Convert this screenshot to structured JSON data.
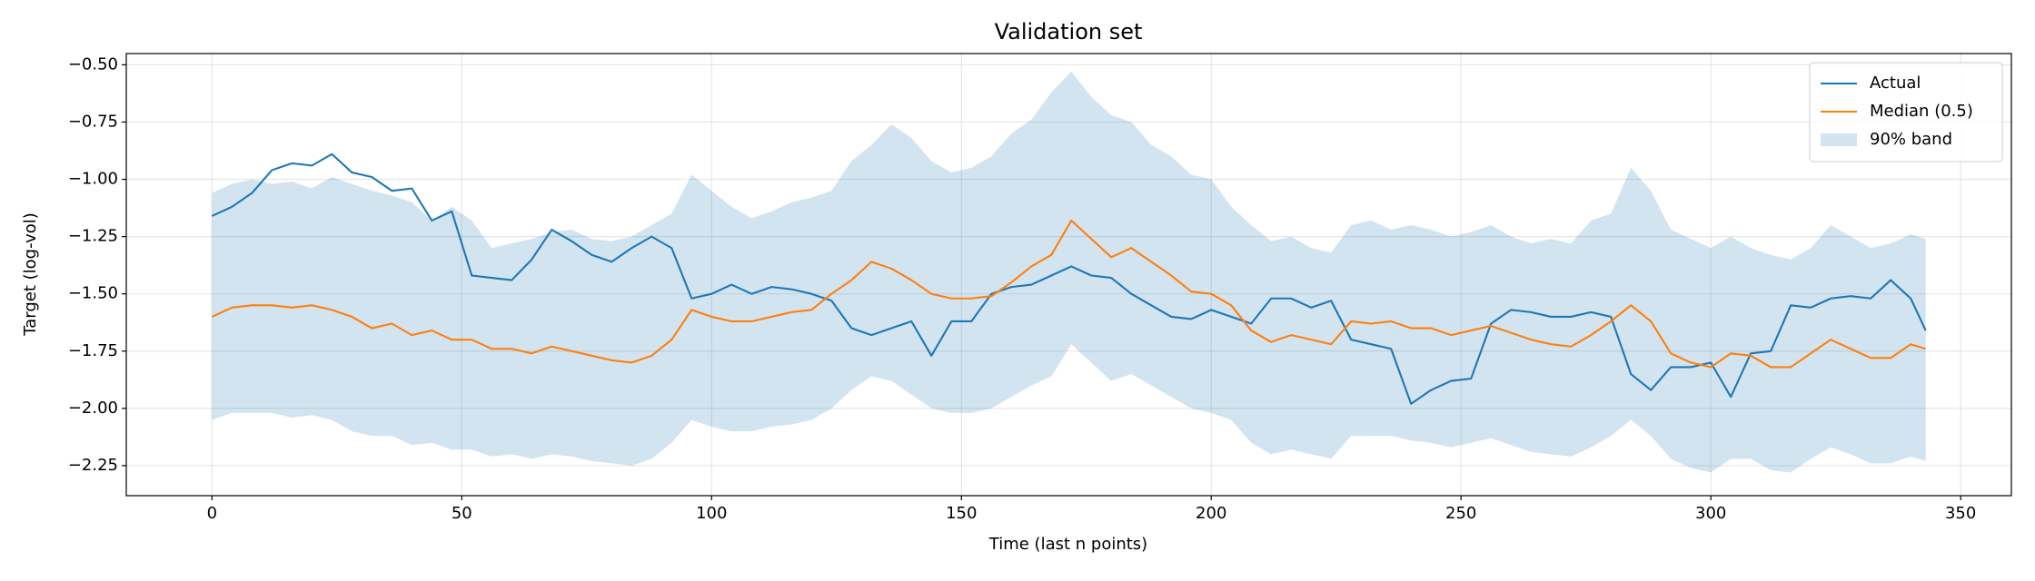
{
  "chart_data": {
    "type": "line",
    "title": "Validation set",
    "x_label": "Time (last n points)",
    "y_label": "Target (log-vol)",
    "x": [
      0,
      4,
      8,
      12,
      16,
      20,
      24,
      28,
      32,
      36,
      40,
      44,
      48,
      52,
      56,
      60,
      64,
      68,
      72,
      76,
      80,
      84,
      88,
      92,
      96,
      100,
      104,
      108,
      112,
      116,
      120,
      124,
      128,
      132,
      136,
      140,
      144,
      148,
      152,
      156,
      160,
      164,
      168,
      172,
      176,
      180,
      184,
      188,
      192,
      196,
      200,
      204,
      208,
      212,
      216,
      220,
      224,
      228,
      232,
      236,
      240,
      244,
      248,
      252,
      256,
      260,
      264,
      268,
      272,
      276,
      280,
      284,
      288,
      292,
      296,
      300,
      304,
      308,
      312,
      316,
      320,
      324,
      328,
      332,
      336,
      340,
      343
    ],
    "series": [
      {
        "name": "Actual",
        "color": "#1f77b4",
        "values": [
          -1.16,
          -1.12,
          -1.06,
          -0.96,
          -0.93,
          -0.94,
          -0.89,
          -0.97,
          -0.99,
          -1.05,
          -1.04,
          -1.18,
          -1.14,
          -1.42,
          -1.43,
          -1.44,
          -1.35,
          -1.22,
          -1.27,
          -1.33,
          -1.36,
          -1.3,
          -1.25,
          -1.3,
          -1.52,
          -1.5,
          -1.46,
          -1.5,
          -1.47,
          -1.48,
          -1.5,
          -1.53,
          -1.65,
          -1.68,
          -1.65,
          -1.62,
          -1.77,
          -1.62,
          -1.62,
          -1.5,
          -1.47,
          -1.46,
          -1.42,
          -1.38,
          -1.42,
          -1.43,
          -1.5,
          -1.55,
          -1.6,
          -1.61,
          -1.57,
          -1.6,
          -1.63,
          -1.52,
          -1.52,
          -1.56,
          -1.53,
          -1.7,
          -1.72,
          -1.74,
          -1.98,
          -1.92,
          -1.88,
          -1.87,
          -1.63,
          -1.57,
          -1.58,
          -1.6,
          -1.6,
          -1.58,
          -1.6,
          -1.85,
          -1.92,
          -1.82,
          -1.82,
          -1.8,
          -1.95,
          -1.76,
          -1.75,
          -1.55,
          -1.56,
          -1.52,
          -1.51,
          -1.52,
          -1.44,
          -1.52,
          -1.66
        ]
      },
      {
        "name": "Median (0.5)",
        "color": "#ff7f0e",
        "values": [
          -1.6,
          -1.56,
          -1.55,
          -1.55,
          -1.56,
          -1.55,
          -1.57,
          -1.6,
          -1.65,
          -1.63,
          -1.68,
          -1.66,
          -1.7,
          -1.7,
          -1.74,
          -1.74,
          -1.76,
          -1.73,
          -1.75,
          -1.77,
          -1.79,
          -1.8,
          -1.77,
          -1.7,
          -1.57,
          -1.6,
          -1.62,
          -1.62,
          -1.6,
          -1.58,
          -1.57,
          -1.5,
          -1.44,
          -1.36,
          -1.39,
          -1.44,
          -1.5,
          -1.52,
          -1.52,
          -1.51,
          -1.45,
          -1.38,
          -1.33,
          -1.18,
          -1.26,
          -1.34,
          -1.3,
          -1.36,
          -1.42,
          -1.49,
          -1.5,
          -1.55,
          -1.66,
          -1.71,
          -1.68,
          -1.7,
          -1.72,
          -1.62,
          -1.63,
          -1.62,
          -1.65,
          -1.65,
          -1.68,
          -1.66,
          -1.64,
          -1.67,
          -1.7,
          -1.72,
          -1.73,
          -1.68,
          -1.62,
          -1.55,
          -1.62,
          -1.76,
          -1.8,
          -1.82,
          -1.76,
          -1.77,
          -1.82,
          -1.82,
          -1.76,
          -1.7,
          -1.74,
          -1.78,
          -1.78,
          -1.72,
          -1.74
        ]
      }
    ],
    "band": {
      "name": "90% band",
      "color": "#1f77b4",
      "opacity": 0.2,
      "upper": [
        -1.06,
        -1.02,
        -1.0,
        -1.02,
        -1.01,
        -1.04,
        -0.99,
        -1.02,
        -1.05,
        -1.07,
        -1.1,
        -1.18,
        -1.12,
        -1.18,
        -1.3,
        -1.28,
        -1.26,
        -1.23,
        -1.22,
        -1.26,
        -1.27,
        -1.25,
        -1.2,
        -1.15,
        -0.98,
        -1.05,
        -1.12,
        -1.17,
        -1.14,
        -1.1,
        -1.08,
        -1.05,
        -0.92,
        -0.85,
        -0.76,
        -0.82,
        -0.92,
        -0.97,
        -0.95,
        -0.9,
        -0.8,
        -0.74,
        -0.62,
        -0.53,
        -0.64,
        -0.72,
        -0.75,
        -0.85,
        -0.9,
        -0.98,
        -1.0,
        -1.12,
        -1.2,
        -1.27,
        -1.25,
        -1.3,
        -1.32,
        -1.2,
        -1.18,
        -1.22,
        -1.2,
        -1.22,
        -1.25,
        -1.23,
        -1.2,
        -1.25,
        -1.28,
        -1.26,
        -1.28,
        -1.18,
        -1.15,
        -0.95,
        -1.05,
        -1.22,
        -1.26,
        -1.3,
        -1.25,
        -1.3,
        -1.33,
        -1.35,
        -1.3,
        -1.2,
        -1.25,
        -1.3,
        -1.28,
        -1.24,
        -1.26
      ],
      "lower": [
        -2.05,
        -2.02,
        -2.02,
        -2.02,
        -2.04,
        -2.03,
        -2.05,
        -2.1,
        -2.12,
        -2.12,
        -2.16,
        -2.15,
        -2.18,
        -2.18,
        -2.21,
        -2.2,
        -2.22,
        -2.2,
        -2.21,
        -2.23,
        -2.24,
        -2.25,
        -2.22,
        -2.15,
        -2.05,
        -2.08,
        -2.1,
        -2.1,
        -2.08,
        -2.07,
        -2.05,
        -2.0,
        -1.92,
        -1.86,
        -1.88,
        -1.94,
        -2.0,
        -2.02,
        -2.02,
        -2.0,
        -1.95,
        -1.9,
        -1.86,
        -1.72,
        -1.8,
        -1.88,
        -1.85,
        -1.9,
        -1.95,
        -2.0,
        -2.02,
        -2.05,
        -2.15,
        -2.2,
        -2.18,
        -2.2,
        -2.22,
        -2.12,
        -2.12,
        -2.12,
        -2.14,
        -2.15,
        -2.17,
        -2.15,
        -2.13,
        -2.16,
        -2.19,
        -2.2,
        -2.21,
        -2.17,
        -2.12,
        -2.05,
        -2.12,
        -2.22,
        -2.26,
        -2.28,
        -2.22,
        -2.22,
        -2.27,
        -2.28,
        -2.22,
        -2.17,
        -2.2,
        -2.24,
        -2.24,
        -2.21,
        -2.23
      ]
    },
    "xlim": [
      -17.15,
      360.15
    ],
    "ylim": [
      -2.381,
      -0.451
    ],
    "xticks": [
      0,
      50,
      100,
      150,
      200,
      250,
      300,
      350
    ],
    "yticks": [
      {
        "value": -2.25,
        "label": "−2.25"
      },
      {
        "value": -2.0,
        "label": "−2.00"
      },
      {
        "value": -1.75,
        "label": "−1.75"
      },
      {
        "value": -1.5,
        "label": "−1.50"
      },
      {
        "value": -1.25,
        "label": "−1.25"
      },
      {
        "value": -1.0,
        "label": "−1.00"
      },
      {
        "value": -0.75,
        "label": "−0.75"
      },
      {
        "value": -0.5,
        "label": "−0.50"
      }
    ],
    "grid": true,
    "legend": "upper right"
  }
}
